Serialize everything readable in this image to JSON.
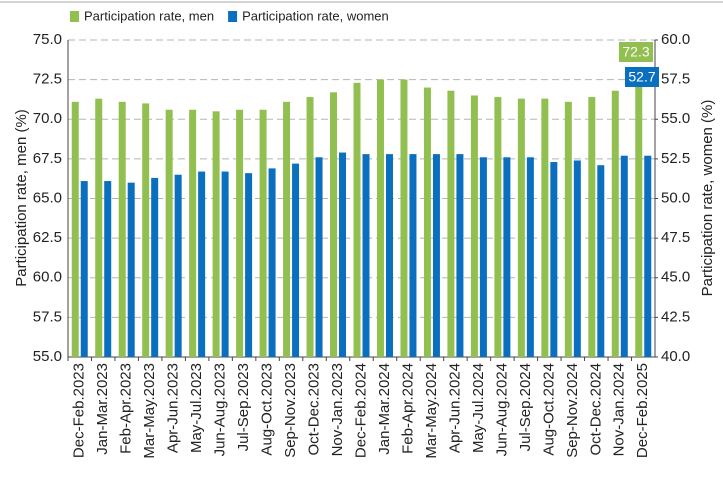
{
  "chart_data": {
    "type": "bar",
    "y_label": "Participation rate, men (%)",
    "y2_label": "Participation rate, women (%)",
    "categories": [
      "Dec-Feb.2023",
      "Jan-Mar.2023",
      "Feb-Apr.2023",
      "Mar-May.2023",
      "Apr-Jun.2023",
      "May-Jul.2023",
      "Jun-Aug.2023",
      "Jul-Sep.2023",
      "Aug-Oct.2023",
      "Sep-Nov.2023",
      "Oct-Dec.2023",
      "Nov-Jan.2023",
      "Dec-Feb.2024",
      "Jan-Mar.2024",
      "Feb-Apr.2024",
      "Mar-May.2024",
      "Apr-Jun.2024",
      "May-Jul.2024",
      "Jun-Aug.2024",
      "Jul-Sep.2024",
      "Aug-Oct.2024",
      "Sep-Nov.2024",
      "Oct-Dec.2024",
      "Nov-Jan.2024",
      "Dec-Feb.2025"
    ],
    "series": [
      {
        "name": "Participation rate, men",
        "color": "#92c050",
        "axis": "y",
        "values": [
          71.1,
          71.3,
          71.1,
          71.0,
          70.6,
          70.6,
          70.5,
          70.6,
          70.6,
          71.1,
          71.4,
          71.7,
          72.3,
          72.5,
          72.5,
          72.0,
          71.8,
          71.5,
          71.4,
          71.3,
          71.3,
          71.1,
          71.4,
          71.8,
          72.3
        ]
      },
      {
        "name": "Participation rate, women",
        "color": "#0a6fbf",
        "axis": "y2",
        "values": [
          51.1,
          51.1,
          51.0,
          51.3,
          51.5,
          51.7,
          51.7,
          51.6,
          51.9,
          52.2,
          52.6,
          52.9,
          52.8,
          52.8,
          52.8,
          52.8,
          52.8,
          52.6,
          52.6,
          52.6,
          52.3,
          52.4,
          52.1,
          52.7,
          52.7
        ]
      }
    ],
    "ylim": [
      55,
      75
    ],
    "yticks": [
      {
        "value": 55,
        "label": "55.0"
      },
      57.5,
      {
        "value": 60,
        "label": "60.0"
      },
      62.5,
      {
        "value": 65,
        "label": "65.0"
      },
      67.5,
      {
        "value": 70,
        "label": "70.0"
      },
      72.5,
      {
        "value": 75,
        "label": "75.0"
      }
    ],
    "y2lim": [
      40,
      60
    ],
    "y2ticks": [
      {
        "value": 40,
        "label": "40.0"
      },
      42.5,
      {
        "value": 45,
        "label": "45.0"
      },
      47.5,
      {
        "value": 50,
        "label": "50.0"
      },
      52.5,
      {
        "value": 55,
        "label": "55.0"
      },
      57.5,
      {
        "value": 60,
        "label": "60.0"
      }
    ],
    "grid": true
  }
}
